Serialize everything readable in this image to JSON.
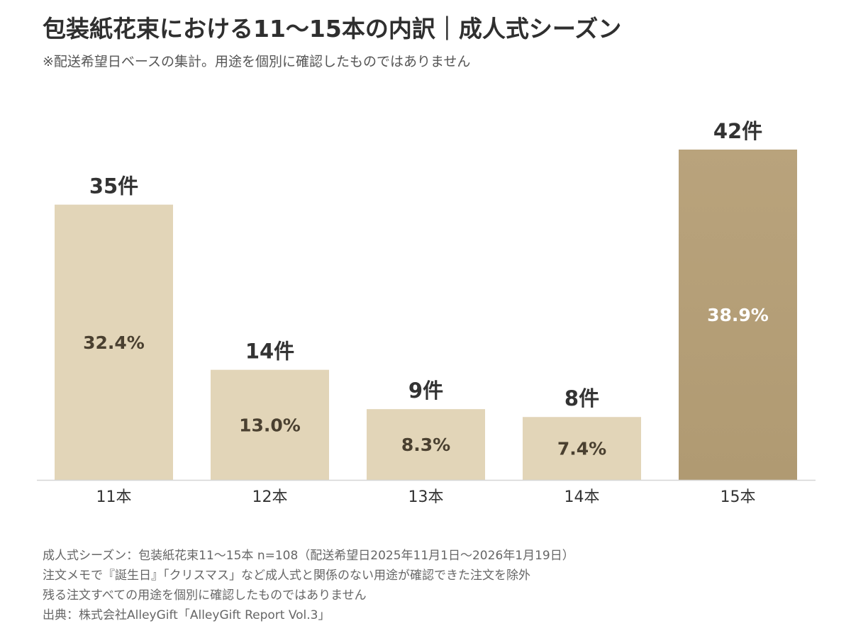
{
  "title": "包装紙花束における11〜15本の内訳｜成人式シーズン",
  "subtitle": "※配送希望日ベースの集計。用途を個別に確認したものではありません",
  "colors": {
    "bar_light": "#e2d5b8",
    "bar_accent_top": "#b9a37c",
    "bar_accent_bottom": "#b09a72",
    "baseline": "#d6d6d6",
    "count_label": "#333333",
    "pct_label_dark": "#4a4030",
    "pct_label_light": "#ffffff"
  },
  "chart_data": {
    "type": "bar",
    "categories": [
      "11本",
      "12本",
      "13本",
      "14本",
      "15本"
    ],
    "values": [
      35,
      14,
      9,
      8,
      42
    ],
    "count_labels": [
      "35件",
      "14件",
      "9件",
      "8件",
      "42件"
    ],
    "percent_labels": [
      "32.4%",
      "13.0%",
      "8.3%",
      "7.4%",
      "38.9%"
    ],
    "highlight_index": 4,
    "ylim": [
      0,
      42
    ],
    "grid": false
  },
  "notes": [
    "成人式シーズン：包装紙花束11〜15本 n=108（配送希望日2025年11月1日〜2026年1月19日）",
    "注文メモで『誕生日』「クリスマス」など成人式と関係のない用途が確認できた注文を除外",
    "残る注文すべての用途を個別に確認したものではありません",
    "出典：株式会社AlleyGift「AlleyGift Report Vol.3」"
  ]
}
